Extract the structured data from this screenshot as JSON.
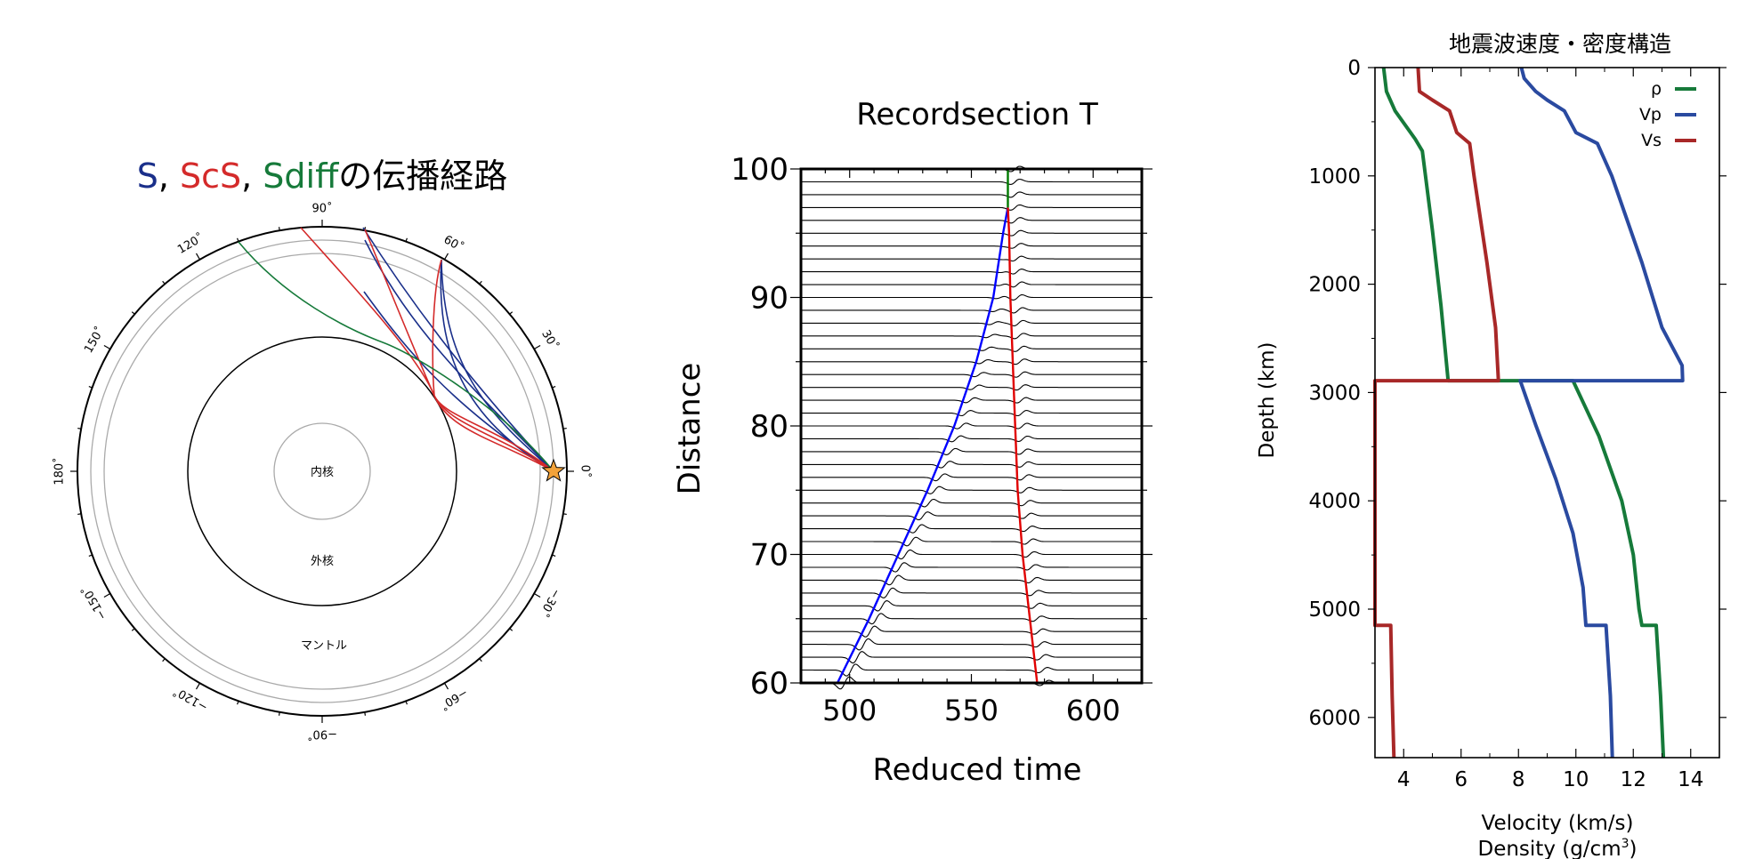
{
  "panels": {
    "ray": {
      "title_parts": [
        {
          "text": "S",
          "color": "#1a2f8a"
        },
        {
          "text": ", ",
          "color": "#000000"
        },
        {
          "text": "ScS",
          "color": "#d42a2a"
        },
        {
          "text": ", ",
          "color": "#000000"
        },
        {
          "text": "Sdiff",
          "color": "#167a3a"
        },
        {
          "text": "の伝播経路",
          "color": "#000000"
        }
      ],
      "angle_labels": [
        {
          "deg": 90,
          "text": "90˚"
        },
        {
          "deg": 60,
          "text": "60˚"
        },
        {
          "deg": 30,
          "text": "30˚"
        },
        {
          "deg": 0,
          "text": "0˚"
        },
        {
          "deg": -30,
          "text": "−30˚"
        },
        {
          "deg": -60,
          "text": "−60˚"
        },
        {
          "deg": -90,
          "text": "−90˚"
        },
        {
          "deg": -120,
          "text": "−120˚"
        },
        {
          "deg": -150,
          "text": "−150˚"
        },
        {
          "deg": 180,
          "text": "180˚"
        },
        {
          "deg": 150,
          "text": "150˚"
        },
        {
          "deg": 120,
          "text": "120˚"
        }
      ],
      "region_labels": {
        "inner_core": "内核",
        "outer_core": "外核",
        "mantle": "マントル"
      },
      "colors": {
        "S": "#1a2f8a",
        "ScS": "#d42a2a",
        "Sdiff": "#167a3a",
        "star": "#f2a23a"
      }
    },
    "record": {
      "chart_data": {
        "type": "line",
        "title": "Recordsection T",
        "xlabel": "Reduced time",
        "ylabel": "Distance",
        "xlim": [
          480,
          620
        ],
        "ylim": [
          60,
          100
        ],
        "xticks": [
          500,
          550,
          600
        ],
        "yticks": [
          60,
          70,
          80,
          90,
          100
        ],
        "traces_distance_step": 1,
        "series": [
          {
            "color": "#0000ff",
            "points": [
              [
                495,
                60
              ],
              [
                508,
                65
              ],
              [
                520,
                70
              ],
              [
                532,
                75
              ],
              [
                543,
                80
              ],
              [
                552,
                85
              ],
              [
                559,
                90
              ],
              [
                563,
                95
              ],
              [
                565,
                97
              ]
            ]
          },
          {
            "color": "#e00000",
            "points": [
              [
                577,
                60
              ],
              [
                574,
                65
              ],
              [
                571,
                70
              ],
              [
                569,
                75
              ],
              [
                568,
                80
              ],
              [
                567,
                85
              ],
              [
                566,
                90
              ],
              [
                565.5,
                95
              ],
              [
                565,
                97
              ]
            ]
          },
          {
            "color": "#007a00",
            "points": [
              [
                565,
                97
              ],
              [
                565,
                100
              ]
            ]
          }
        ]
      }
    },
    "velocity": {
      "chart_data": {
        "type": "line",
        "title": "地震波速度・密度構造",
        "xlabel_line1": "Velocity (km/s)",
        "xlabel_line2_prefix": "Density (g/cm",
        "xlabel_line2_sup": "3",
        "xlabel_line2_suffix": ")",
        "ylabel": "Depth (km)",
        "xlim": [
          3,
          15
        ],
        "ylim": [
          6371,
          0
        ],
        "xticks": [
          "4",
          "6",
          "8",
          "10",
          "12",
          "14"
        ],
        "yticks": [
          "0",
          "1000",
          "2000",
          "3000",
          "4000",
          "5000",
          "6000"
        ],
        "legend_position": "top-right",
        "series": [
          {
            "name": "ρ",
            "color": "#167a3a",
            "points": [
              [
                3.3,
                0
              ],
              [
                3.4,
                220
              ],
              [
                3.7,
                400
              ],
              [
                4.4,
                660
              ],
              [
                4.65,
                770
              ],
              [
                5.0,
                1500
              ],
              [
                5.3,
                2200
              ],
              [
                5.55,
                2891
              ],
              [
                9.9,
                2891
              ],
              [
                10.8,
                3400
              ],
              [
                11.6,
                4000
              ],
              [
                12.0,
                4500
              ],
              [
                12.2,
                5000
              ],
              [
                12.3,
                5150
              ],
              [
                12.8,
                5150
              ],
              [
                12.95,
                5800
              ],
              [
                13.05,
                6371
              ]
            ]
          },
          {
            "name": "Vp",
            "color": "#2a4aa0",
            "points": [
              [
                8.1,
                0
              ],
              [
                8.2,
                100
              ],
              [
                8.6,
                220
              ],
              [
                9.0,
                300
              ],
              [
                9.6,
                400
              ],
              [
                10.0,
                600
              ],
              [
                10.75,
                700
              ],
              [
                11.25,
                1000
              ],
              [
                12.3,
                1800
              ],
              [
                13.0,
                2400
              ],
              [
                13.7,
                2750
              ],
              [
                13.72,
                2891
              ],
              [
                8.06,
                2891
              ],
              [
                8.6,
                3300
              ],
              [
                9.3,
                3800
              ],
              [
                9.9,
                4300
              ],
              [
                10.25,
                4800
              ],
              [
                10.35,
                5150
              ],
              [
                11.05,
                5150
              ],
              [
                11.2,
                5800
              ],
              [
                11.27,
                6371
              ]
            ]
          },
          {
            "name": "Vs",
            "color": "#a82828",
            "points": [
              [
                4.5,
                0
              ],
              [
                4.55,
                220
              ],
              [
                5.0,
                300
              ],
              [
                5.6,
                400
              ],
              [
                5.85,
                600
              ],
              [
                6.3,
                700
              ],
              [
                6.45,
                1000
              ],
              [
                6.9,
                1800
              ],
              [
                7.2,
                2400
              ],
              [
                7.3,
                2891
              ],
              [
                3.0,
                2891
              ],
              [
                3.0,
                5150
              ],
              [
                3.55,
                5150
              ],
              [
                3.6,
                5800
              ],
              [
                3.66,
                6371
              ]
            ]
          }
        ]
      }
    }
  }
}
